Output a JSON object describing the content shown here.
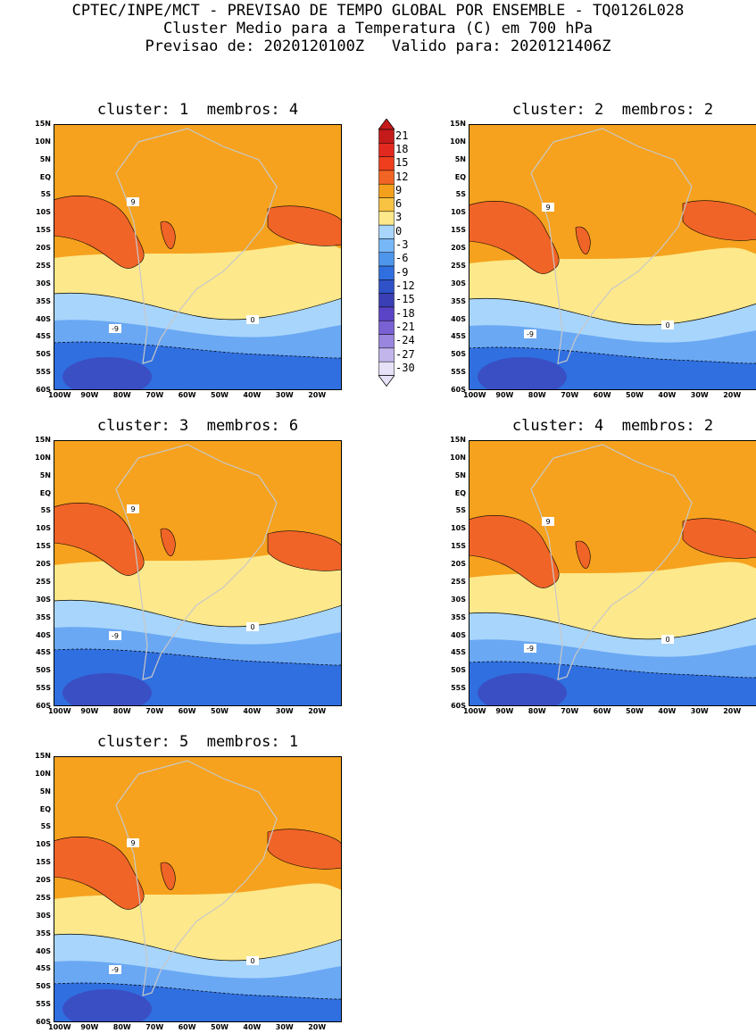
{
  "header": {
    "line1": "CPTEC/INPE/MCT - PREVISAO DE TEMPO GLOBAL POR ENSEMBLE - TQ0126L028",
    "line2": "Cluster Medio para a Temperatura (C) em 700 hPa",
    "line3": "Previsao de: 2020120100Z   Valido para: 2020121406Z"
  },
  "panels": [
    {
      "title": "cluster: 1  membros: 4"
    },
    {
      "title": "cluster: 2  membros: 2"
    },
    {
      "title": "cluster: 3  membros: 6"
    },
    {
      "title": "cluster: 4  membros: 2"
    },
    {
      "title": "cluster: 5  membros: 1"
    }
  ],
  "lat_labels": [
    "15N",
    "10N",
    "5N",
    "EQ",
    "5S",
    "10S",
    "15S",
    "20S",
    "25S",
    "30S",
    "35S",
    "40S",
    "45S",
    "50S",
    "55S",
    "60S"
  ],
  "lon_labels": [
    "100W",
    "90W",
    "80W",
    "70W",
    "60W",
    "50W",
    "40W",
    "30W",
    "20W"
  ],
  "contour_labels": [
    "9",
    "0",
    "-9"
  ],
  "colorbar": {
    "labels": [
      "21",
      "18",
      "15",
      "12",
      "9",
      "6",
      "3",
      "0",
      "-3",
      "-6",
      "-9",
      "-12",
      "-15",
      "-18",
      "-21",
      "-24",
      "-27",
      "-30"
    ],
    "colors": [
      "#c41a1a",
      "#e3281f",
      "#ef3e1e",
      "#f26424",
      "#f5a01c",
      "#f8c243",
      "#fde98c",
      "#a8d5fb",
      "#77b6f7",
      "#4e95ec",
      "#2f6fe0",
      "#2f52c8",
      "#3b3fb6",
      "#5a43c4",
      "#7a62d4",
      "#9b86df",
      "#c2b5ec",
      "#e6e1f7"
    ],
    "orange_main": "#f6a21e",
    "orange_dark": "#f06428",
    "yellow_light": "#fde98c",
    "blue_light": "#a8d5fb",
    "blue_mid": "#6aa8f3",
    "blue_dark": "#2f6fe0",
    "blue_deep": "#3b4fc4",
    "land_outline": "#c8c8c8"
  }
}
